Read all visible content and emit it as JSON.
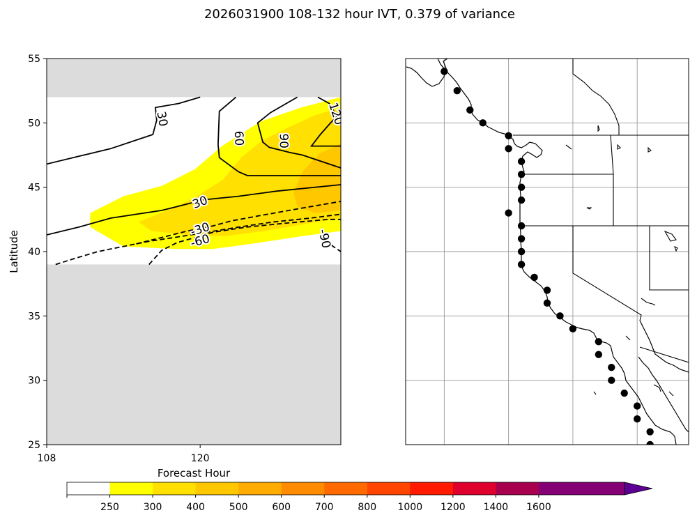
{
  "figure": {
    "title": "2026031900 108-132 hour IVT, 0.379 of variance"
  },
  "chart_data": [
    {
      "type": "heatmap",
      "panel": "left",
      "xlabel": "Forecast Hour",
      "ylabel": "Latitude",
      "xlim": [
        108,
        131
      ],
      "ylim": [
        25,
        55
      ],
      "x_ticks": [
        {
          "value": 108,
          "label": "108"
        },
        {
          "value": 120,
          "label": "120"
        }
      ],
      "y_ticks": [
        {
          "value": 25,
          "label": "25"
        },
        {
          "value": 30,
          "label": "30"
        },
        {
          "value": 35,
          "label": "35"
        },
        {
          "value": 40,
          "label": "40"
        },
        {
          "value": 45,
          "label": "45"
        },
        {
          "value": 50,
          "label": "50"
        },
        {
          "value": 55,
          "label": "55"
        }
      ],
      "masked_regions": [
        {
          "lat_from": 52,
          "lat_to": 55,
          "color": "#dcdcdc"
        },
        {
          "lat_from": 25,
          "lat_to": 39,
          "color": "#dcdcdc"
        }
      ],
      "filled_contours": [
        {
          "level": 250,
          "color": "#ffff00",
          "points": [
            [
              111.4,
              43
            ],
            [
              114,
              44.3
            ],
            [
              117,
              45.1
            ],
            [
              119.6,
              46.4
            ],
            [
              121.7,
              48.2
            ],
            [
              124.7,
              50.1
            ],
            [
              127.9,
              51.2
            ],
            [
              131,
              52
            ],
            [
              131,
              41.6
            ],
            [
              128,
              41.2
            ],
            [
              124,
              40.6
            ],
            [
              121,
              40.2
            ],
            [
              118,
              40.2
            ],
            [
              114,
              40.4
            ],
            [
              111.4,
              41.9
            ]
          ]
        },
        {
          "level": 300,
          "color": "#ffe000",
          "points": [
            [
              115.2,
              42.3
            ],
            [
              117.4,
              43.2
            ],
            [
              119.6,
              44.2
            ],
            [
              121.8,
              45.6
            ],
            [
              123.2,
              47.3
            ],
            [
              124.8,
              48.6
            ],
            [
              126.8,
              49.6
            ],
            [
              129,
              50.6
            ],
            [
              131,
              51.2
            ],
            [
              131,
              42.6
            ],
            [
              128.5,
              42.2
            ],
            [
              125,
              41.6
            ],
            [
              122,
              41.2
            ],
            [
              119,
              41.3
            ],
            [
              116.2,
              41.6
            ]
          ]
        },
        {
          "level": 400,
          "color": "#ffc700",
          "points": [
            [
              127.3,
              44.6
            ],
            [
              128,
              46.2
            ],
            [
              129.3,
              47.6
            ],
            [
              131,
              48.4
            ],
            [
              131,
              43.2
            ],
            [
              129,
              43
            ],
            [
              127.6,
              43.5
            ]
          ]
        }
      ],
      "contours": [
        {
          "label": "30",
          "style": "solid",
          "points": [
            [
              108,
              46.8
            ],
            [
              110.5,
              47.4
            ],
            [
              113,
              48
            ],
            [
              116.3,
              49.1
            ],
            [
              116.6,
              50.2
            ],
            [
              116.5,
              51.2
            ],
            [
              118.3,
              51.5
            ],
            [
              120,
              52
            ]
          ]
        },
        {
          "label": "60",
          "style": "solid",
          "points": [
            [
              122.8,
              52
            ],
            [
              121.5,
              50.9
            ],
            [
              121.4,
              48.3
            ],
            [
              121.5,
              47.3
            ],
            [
              123,
              46.2
            ],
            [
              123.7,
              45.9
            ],
            [
              131,
              45.9
            ]
          ]
        },
        {
          "label": "90",
          "style": "solid",
          "points": [
            [
              127.6,
              52
            ],
            [
              125.5,
              50.8
            ],
            [
              124.5,
              50
            ],
            [
              124.9,
              48.5
            ],
            [
              125.4,
              48.1
            ],
            [
              127,
              47.7
            ],
            [
              128,
              47.5
            ],
            [
              131,
              46.5
            ]
          ]
        },
        {
          "label": "120",
          "style": "solid",
          "points": [
            [
              129.2,
              52
            ],
            [
              130.1,
              51.5
            ],
            [
              130.7,
              50.5
            ],
            [
              130.2,
              50
            ],
            [
              129.4,
              49.1
            ],
            [
              128.7,
              48.2
            ],
            [
              131,
              48.2
            ]
          ]
        },
        {
          "label": "30",
          "style": "solid",
          "points": [
            [
              108,
              41.3
            ],
            [
              110.5,
              41.9
            ],
            [
              113,
              42.6
            ],
            [
              117,
              43.2
            ],
            [
              119.4,
              43.8
            ],
            [
              120,
              44
            ],
            [
              123,
              44.3
            ],
            [
              126,
              44.7
            ],
            [
              131,
              45.2
            ]
          ]
        },
        {
          "label": "-30",
          "style": "dashed",
          "points": [
            [
              115,
              40.6
            ],
            [
              117,
              41.1
            ],
            [
              119,
              41.6
            ],
            [
              121,
              42
            ],
            [
              122.5,
              42.4
            ],
            [
              124.7,
              42.8
            ],
            [
              127.5,
              43.3
            ],
            [
              131,
              43.9
            ]
          ]
        },
        {
          "label": "-60",
          "style": "dashed",
          "points": [
            [
              108.7,
              39
            ],
            [
              110.3,
              39.5
            ],
            [
              112,
              40
            ],
            [
              114,
              40.4
            ],
            [
              116,
              40.8
            ],
            [
              118,
              41.1
            ],
            [
              120.5,
              41.5
            ],
            [
              123,
              41.9
            ],
            [
              125.7,
              42.3
            ],
            [
              128.6,
              42.6
            ],
            [
              131,
              42.9
            ]
          ]
        },
        {
          "label": "-90",
          "style": "dashed",
          "points": [
            [
              116,
              39
            ],
            [
              117,
              40.1
            ],
            [
              118.2,
              40.7
            ],
            [
              120,
              41.2
            ],
            [
              121,
              41.5
            ],
            [
              123.6,
              41.9
            ],
            [
              126.6,
              42.2
            ],
            [
              130,
              42.5
            ],
            [
              131,
              42.5
            ]
          ]
        },
        {
          "label": "-90",
          "style": "dashed",
          "points": [
            [
              129.8,
              40.9
            ],
            [
              130.4,
              40.4
            ],
            [
              131,
              40
            ]
          ]
        }
      ],
      "contour_labels": [
        {
          "text": "30",
          "x": 117,
          "y": 50.3,
          "rotation": 80
        },
        {
          "text": "60",
          "x": 123,
          "y": 48.8,
          "rotation": 88
        },
        {
          "text": "90",
          "x": 126.5,
          "y": 48.6,
          "rotation": 90
        },
        {
          "text": "120",
          "x": 130.6,
          "y": 50.7,
          "rotation": 72
        },
        {
          "text": "30",
          "x": 120,
          "y": 43.8,
          "rotation": -20
        },
        {
          "text": "-30",
          "x": 120,
          "y": 41.7,
          "rotation": -18
        },
        {
          "text": "-60",
          "x": 120,
          "y": 40.8,
          "rotation": -16
        },
        {
          "text": "-90",
          "x": 129.7,
          "y": 41,
          "rotation": 78
        }
      ]
    },
    {
      "type": "scatter",
      "panel": "right",
      "projection": "map",
      "lon_range": [
        -133,
        -111
      ],
      "lat_range": [
        25,
        55
      ],
      "gridlines": {
        "lon": [
          -130,
          -125,
          -120,
          -115
        ],
        "lat": [
          30,
          35,
          40,
          45,
          50
        ]
      },
      "points": [
        [
          -130,
          54
        ],
        [
          -129,
          52.5
        ],
        [
          -128,
          51
        ],
        [
          -127,
          50
        ],
        [
          -125,
          49
        ],
        [
          -125,
          48
        ],
        [
          -124,
          47
        ],
        [
          -124,
          46
        ],
        [
          -124,
          45
        ],
        [
          -124,
          44
        ],
        [
          -125,
          43
        ],
        [
          -124,
          42
        ],
        [
          -124,
          41
        ],
        [
          -124,
          40
        ],
        [
          -124,
          39
        ],
        [
          -123,
          38
        ],
        [
          -122,
          37
        ],
        [
          -122,
          36
        ],
        [
          -121,
          35
        ],
        [
          -120,
          34
        ],
        [
          -118,
          33
        ],
        [
          -118,
          32
        ],
        [
          -117,
          31
        ],
        [
          -117,
          30
        ],
        [
          -116,
          29
        ],
        [
          -115,
          28
        ],
        [
          -115,
          27
        ],
        [
          -114,
          26
        ],
        [
          -114,
          25
        ]
      ]
    }
  ],
  "colorbar": {
    "tick_labels": [
      "250",
      "300",
      "400",
      "500",
      "600",
      "700",
      "800",
      "1000",
      "1200",
      "1400",
      "1600"
    ],
    "colors": [
      "#ffffff",
      "#ffff00",
      "#ffe000",
      "#ffc700",
      "#ffab00",
      "#ff8c00",
      "#ff6a00",
      "#ff4500",
      "#ff1a00",
      "#e0002e",
      "#a8004f",
      "#860075",
      "#5e0094"
    ],
    "extend": "max"
  }
}
